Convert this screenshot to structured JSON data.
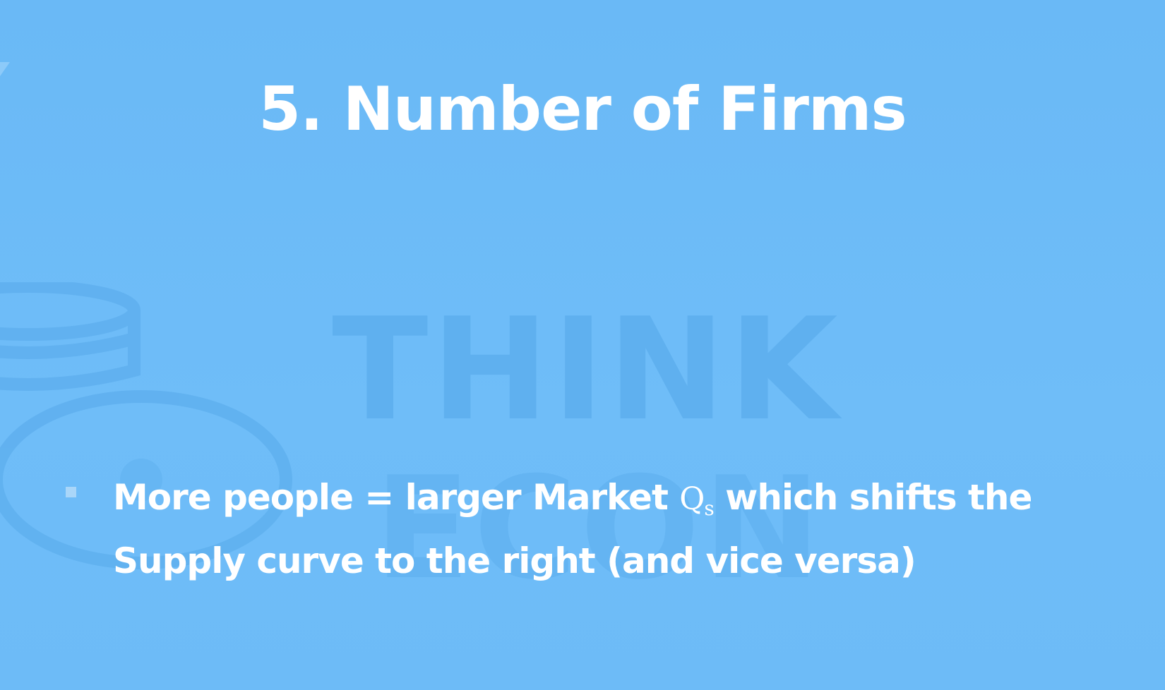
{
  "slide": {
    "background_color": "#6cbbf7",
    "watermark_color": "#5fb0ef",
    "title": "5. Number of Firms",
    "watermark": {
      "logo_line1": "THINK",
      "logo_line2": "ECON"
    },
    "bullets": [
      {
        "text_before": "More people = larger Market ",
        "math_base": "Q",
        "math_subscript": "s",
        "text_after": " which shifts the Supply curve to the right (and vice versa)"
      }
    ]
  }
}
